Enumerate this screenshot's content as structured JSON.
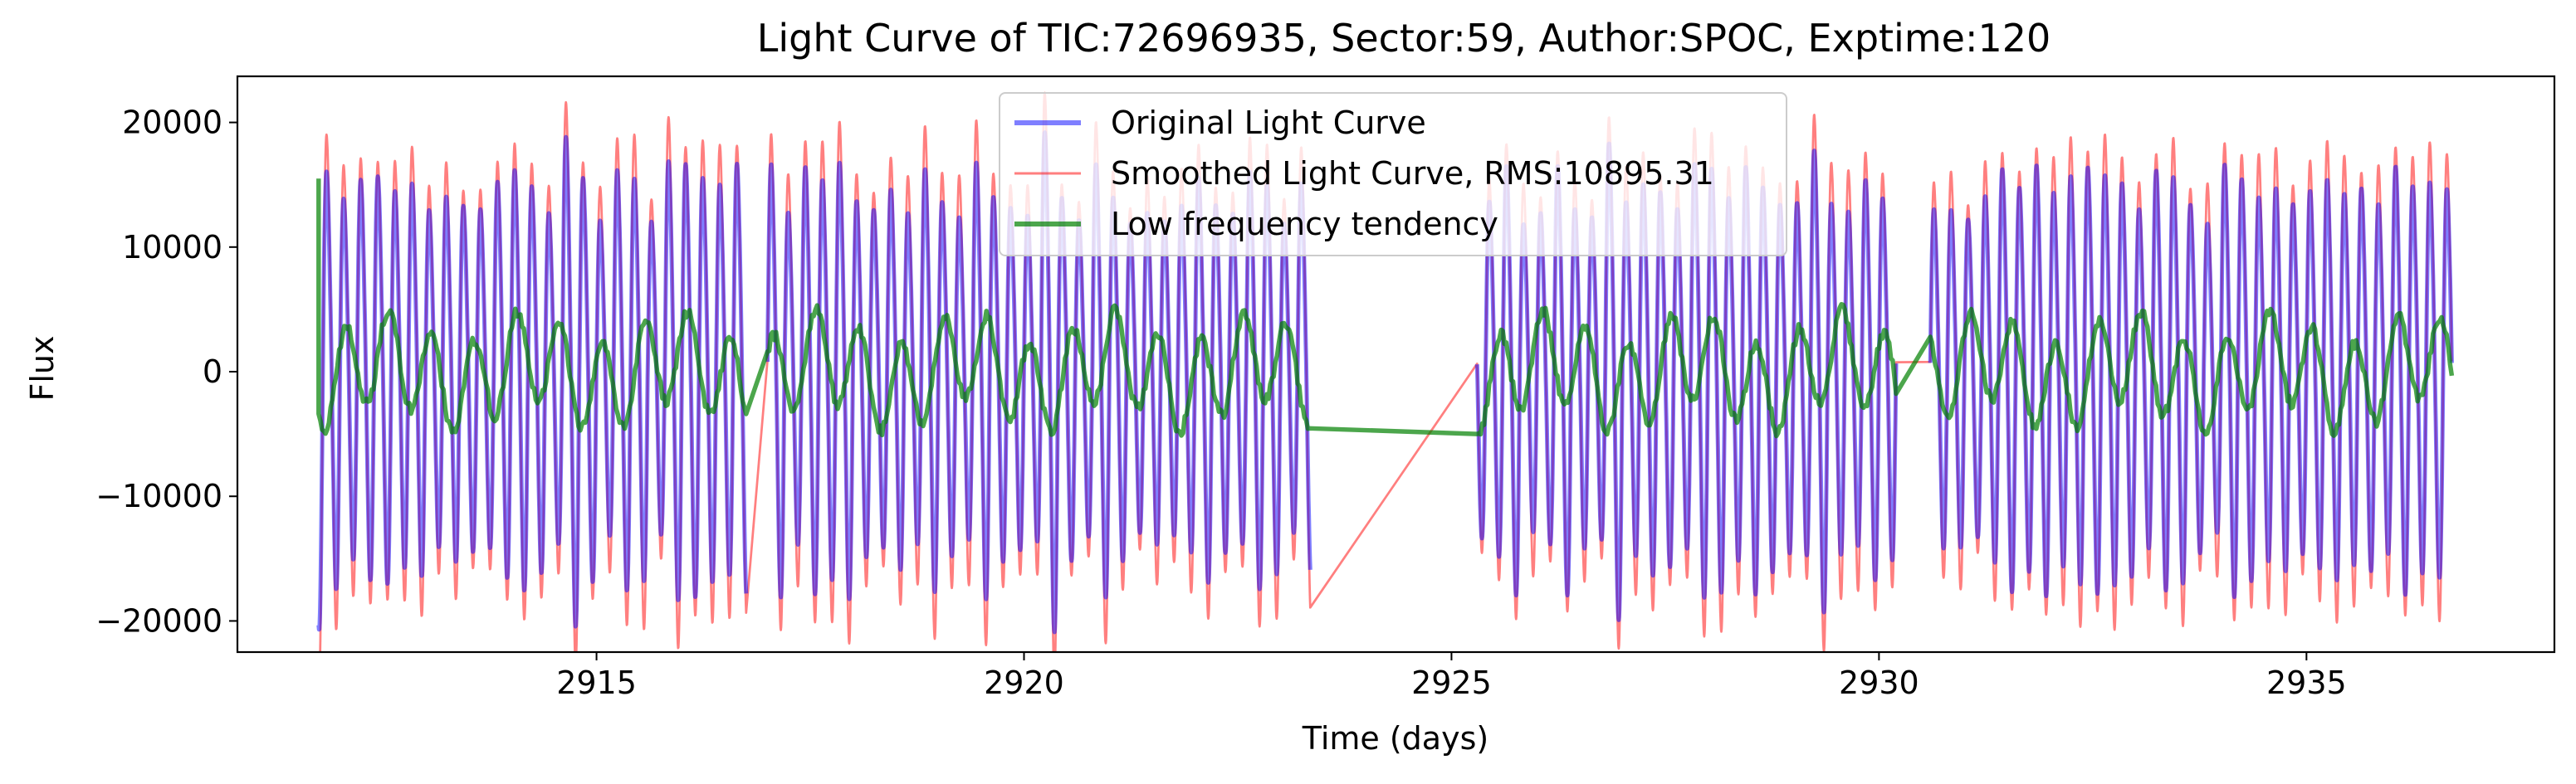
{
  "chart_data": {
    "type": "line",
    "title": "Light Curve of TIC:72696935, Sector:59, Author:SPOC, Exptime:120",
    "xlabel": "Time (days)",
    "ylabel": "Flux",
    "xlim": [
      2910.8,
      2937.9
    ],
    "ylim": [
      -22500,
      23700
    ],
    "x_ticks": [
      2915,
      2920,
      2925,
      2930,
      2935
    ],
    "x_tick_labels": [
      "2915",
      "2920",
      "2925",
      "2930",
      "2935"
    ],
    "y_ticks": [
      -20000,
      -10000,
      0,
      10000,
      20000
    ],
    "y_tick_labels": [
      "−20000",
      "−10000",
      "0",
      "10000",
      "20000"
    ],
    "grid": false,
    "legend_position": "upper-center",
    "gaps": [
      [
        2916.75,
        2917.0
      ],
      [
        2923.35,
        2925.3
      ],
      [
        2930.2,
        2930.6
      ]
    ],
    "time_range": [
      2911.75,
      2936.7
    ],
    "series": [
      {
        "name": "Original Light Curve",
        "color": "#0000ff",
        "alpha": 0.5,
        "linewidth": 2.4,
        "period_days": 0.2,
        "amplitude_range": [
          12500,
          20000
        ],
        "mean": 0
      },
      {
        "name": "Smoothed Light Curve, RMS:10895.31",
        "color": "#ff0000",
        "alpha": 0.5,
        "linewidth": 1.3,
        "period_days": 0.2,
        "amplitude_range": [
          12500,
          20500
        ],
        "mean": 0,
        "rms": 10895.31
      },
      {
        "name": "Low frequency tendency",
        "color": "#008000",
        "alpha": 0.7,
        "linewidth": 2.6,
        "amplitude_range": [
          3000,
          7000
        ],
        "mean": 0
      }
    ]
  }
}
